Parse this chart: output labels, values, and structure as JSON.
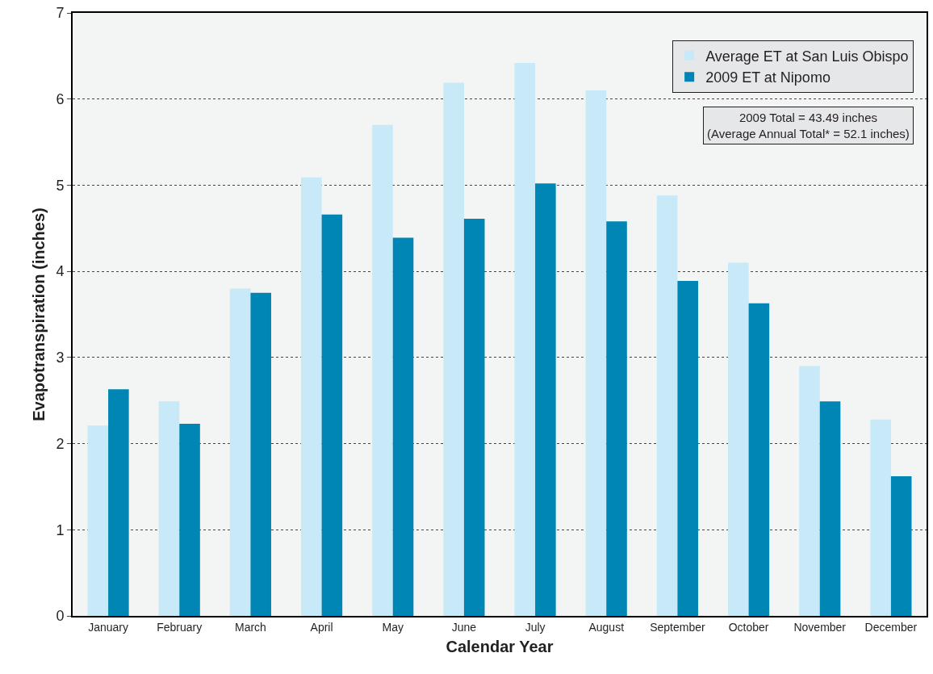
{
  "chart_data": {
    "type": "bar",
    "xlabel": "Calendar Year",
    "ylabel": "Evapotranspiration (inches)",
    "categories": [
      "January",
      "February",
      "March",
      "April",
      "May",
      "June",
      "July",
      "August",
      "September",
      "October",
      "November",
      "December"
    ],
    "series": [
      {
        "name": "Average ET at San Luis Obispo",
        "color": "#c7e9f8",
        "values": [
          2.21,
          2.49,
          3.8,
          5.09,
          5.7,
          6.19,
          6.42,
          6.1,
          4.88,
          4.1,
          2.9,
          2.28
        ]
      },
      {
        "name": "2009 ET at Nipomo",
        "color": "#0086b4",
        "values": [
          2.63,
          2.23,
          3.75,
          4.66,
          4.39,
          4.61,
          5.02,
          4.58,
          3.89,
          3.63,
          2.49,
          1.62
        ]
      }
    ],
    "ylim": [
      0,
      7
    ],
    "yticks": [
      0,
      1,
      2,
      3,
      4,
      5,
      6,
      7
    ],
    "grid": "y",
    "legend": "top right",
    "annotations": [
      "2009 Total = 43.49 inches",
      "(Average Annual Total* = 52.1 inches)"
    ]
  }
}
